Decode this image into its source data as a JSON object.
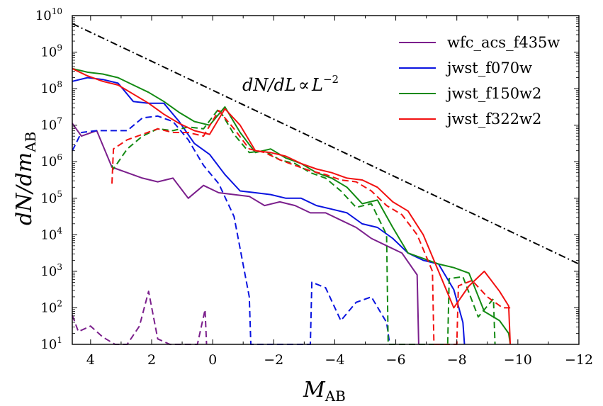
{
  "chart_data": {
    "type": "line",
    "title": "",
    "xlabel": "M",
    "xlabel_sub": "AB",
    "ylabel": "dN/dm",
    "ylabel_sub": "AB",
    "xlim": [
      4.6,
      -12
    ],
    "ylim_log10": [
      1,
      10
    ],
    "y_scale": "log",
    "x_ticks": [
      4,
      2,
      0,
      -2,
      -4,
      -6,
      -8,
      -10,
      -12
    ],
    "x_tick_labels": [
      "4",
      "2",
      "0",
      "−2",
      "−4",
      "−6",
      "−8",
      "−10",
      "−12"
    ],
    "y_ticks": [
      {
        "base": "10",
        "exp": "1",
        "value": 1
      },
      {
        "base": "10",
        "exp": "2",
        "value": 2
      },
      {
        "base": "10",
        "exp": "3",
        "value": 3
      },
      {
        "base": "10",
        "exp": "4",
        "value": 4
      },
      {
        "base": "10",
        "exp": "5",
        "value": 5
      },
      {
        "base": "10",
        "exp": "6",
        "value": 6
      },
      {
        "base": "10",
        "exp": "7",
        "value": 7
      },
      {
        "base": "10",
        "exp": "8",
        "value": 8
      },
      {
        "base": "10",
        "exp": "9",
        "value": 9
      },
      {
        "base": "10",
        "exp": "10",
        "value": 10
      }
    ],
    "legend_position": "top-right",
    "annotation": {
      "text_main": "dN/dL",
      "symbol": "∝",
      "text_L": "L",
      "exponent": "−2",
      "anchor_x": -2.6,
      "anchor_y_log": 8.0
    },
    "reference_line": {
      "x": [
        4.6,
        -12
      ],
      "y_log": [
        9.78,
        3.2
      ],
      "color": "#000000",
      "style": "dashdot"
    },
    "series": [
      {
        "name": "wfc_acs_f435w",
        "color": "#7b1f8c",
        "solid": {
          "x": [
            4.6,
            4.3,
            3.8,
            3.3,
            2.8,
            2.3,
            1.8,
            1.3,
            0.8,
            0.3,
            -0.2,
            -0.7,
            -1.2,
            -1.7,
            -2.2,
            -2.7,
            -3.2,
            -3.7,
            -4.2,
            -4.7,
            -5.2,
            -5.7,
            -6.2,
            -6.7,
            -6.75
          ],
          "y": [
            7.05,
            6.7,
            6.85,
            5.85,
            5.7,
            5.55,
            5.45,
            5.55,
            5.0,
            5.35,
            5.15,
            5.1,
            5.05,
            4.8,
            4.9,
            4.8,
            4.6,
            4.6,
            4.4,
            4.2,
            3.9,
            3.7,
            3.5,
            2.9,
            1.0
          ]
        },
        "dashed": {
          "x": [
            4.6,
            4.4,
            4.0,
            3.6,
            3.2,
            2.8,
            2.4,
            2.1,
            1.8,
            1.4,
            0.9,
            0.5,
            0.25,
            0.2
          ],
          "y": [
            1.8,
            1.35,
            1.5,
            1.2,
            1.0,
            1.0,
            1.5,
            2.45,
            1.15,
            1.0,
            1.0,
            1.0,
            1.95,
            1.0
          ]
        }
      },
      {
        "name": "jwst_f070w",
        "color": "#0a14e0",
        "solid": {
          "x": [
            4.6,
            4.1,
            3.6,
            3.1,
            2.6,
            2.1,
            1.6,
            1.1,
            0.6,
            0.1,
            -0.4,
            -0.9,
            -1.4,
            -1.9,
            -2.4,
            -2.9,
            -3.4,
            -3.9,
            -4.4,
            -4.9,
            -5.4,
            -5.9,
            -6.4,
            -6.9,
            -7.4,
            -7.9,
            -8.2,
            -8.25
          ],
          "y": [
            8.2,
            8.3,
            8.25,
            8.15,
            7.65,
            7.6,
            7.6,
            7.1,
            6.5,
            6.2,
            5.65,
            5.2,
            5.15,
            5.1,
            5.0,
            5.0,
            4.8,
            4.7,
            4.6,
            4.3,
            4.2,
            3.9,
            3.5,
            3.3,
            3.2,
            2.5,
            1.6,
            1.0
          ]
        },
        "dashed": {
          "x": [
            4.6,
            4.3,
            3.8,
            3.3,
            2.8,
            2.3,
            1.8,
            1.3,
            0.8,
            0.3,
            -0.2,
            -0.7,
            -1.2,
            -1.25,
            -3.2,
            -3.25,
            -3.7,
            -4.2,
            -4.7,
            -5.2,
            -5.7,
            -5.8,
            -5.85
          ],
          "y": [
            6.3,
            6.8,
            6.85,
            6.85,
            6.85,
            7.2,
            7.25,
            7.1,
            6.6,
            5.9,
            5.4,
            4.5,
            2.3,
            1.0,
            1.0,
            2.7,
            2.55,
            1.65,
            2.15,
            2.3,
            1.6,
            1.0,
            1.0
          ]
        }
      },
      {
        "name": "jwst_f150w2",
        "color": "#138a13",
        "solid": {
          "x": [
            4.6,
            4.1,
            3.6,
            3.1,
            2.6,
            2.1,
            1.6,
            1.1,
            0.6,
            0.1,
            -0.4,
            -0.9,
            -1.4,
            -1.9,
            -2.4,
            -2.9,
            -3.4,
            -3.9,
            -4.4,
            -4.9,
            -5.4,
            -5.9,
            -6.4,
            -6.9,
            -7.4,
            -7.9,
            -8.4,
            -8.9,
            -9.4,
            -9.7,
            -9.75
          ],
          "y": [
            8.55,
            8.45,
            8.4,
            8.3,
            8.1,
            7.9,
            7.65,
            7.35,
            7.1,
            7.0,
            7.5,
            6.8,
            6.25,
            6.35,
            6.1,
            5.95,
            5.7,
            5.55,
            5.3,
            4.85,
            4.95,
            4.2,
            3.5,
            3.35,
            3.2,
            3.1,
            2.95,
            1.9,
            1.65,
            1.3,
            1.0
          ]
        },
        "dashed": {
          "x": [
            3.3,
            3.25,
            2.8,
            2.3,
            1.8,
            1.3,
            0.8,
            0.3,
            -0.2,
            -0.7,
            -1.2,
            -1.7,
            -2.2,
            -2.7,
            -3.2,
            -3.7,
            -4.2,
            -4.7,
            -5.2,
            -5.7,
            -5.75,
            -7.7,
            -7.75,
            -8.2,
            -8.7,
            -9.2,
            -9.25
          ],
          "y": [
            5.9,
            5.8,
            6.35,
            6.7,
            6.9,
            6.85,
            6.95,
            6.9,
            7.45,
            6.75,
            6.25,
            6.3,
            6.05,
            5.95,
            5.7,
            5.55,
            5.2,
            4.75,
            4.85,
            4.0,
            1.0,
            1.0,
            2.8,
            2.85,
            1.75,
            2.25,
            1.0
          ]
        }
      },
      {
        "name": "jwst_f322w2",
        "color": "#f21111",
        "solid": {
          "x": [
            4.6,
            4.1,
            3.6,
            3.1,
            2.6,
            2.1,
            1.6,
            1.1,
            0.6,
            0.1,
            -0.4,
            -0.9,
            -1.4,
            -1.9,
            -2.4,
            -2.9,
            -3.4,
            -3.9,
            -4.4,
            -4.9,
            -5.4,
            -5.9,
            -6.4,
            -6.9,
            -7.4,
            -7.9,
            -8.4,
            -8.9,
            -9.4,
            -9.7,
            -9.75
          ],
          "y": [
            8.55,
            8.35,
            8.2,
            8.1,
            7.85,
            7.6,
            7.3,
            7.05,
            6.85,
            6.75,
            7.45,
            7.0,
            6.3,
            6.25,
            6.15,
            5.95,
            5.8,
            5.7,
            5.55,
            5.5,
            5.3,
            4.9,
            4.65,
            4.0,
            3.0,
            2.0,
            2.6,
            3.0,
            2.45,
            2.05,
            1.0
          ]
        },
        "dashed": {
          "x": [
            3.3,
            3.25,
            2.8,
            2.3,
            1.8,
            1.3,
            0.8,
            0.3,
            -0.2,
            -0.7,
            -1.2,
            -1.7,
            -2.2,
            -2.7,
            -3.2,
            -3.7,
            -4.2,
            -4.7,
            -5.2,
            -5.7,
            -6.2,
            -6.7,
            -7.2,
            -7.25,
            -8.0,
            -8.05,
            -8.5,
            -9.0,
            -9.5,
            -9.75
          ],
          "y": [
            5.4,
            6.35,
            6.6,
            6.75,
            6.9,
            6.8,
            6.8,
            6.7,
            7.4,
            6.9,
            6.35,
            6.25,
            6.05,
            5.9,
            5.75,
            5.65,
            5.5,
            5.45,
            5.2,
            4.8,
            4.55,
            4.0,
            3.0,
            1.0,
            1.0,
            2.6,
            2.75,
            2.3,
            2.0,
            2.0
          ]
        }
      }
    ]
  }
}
